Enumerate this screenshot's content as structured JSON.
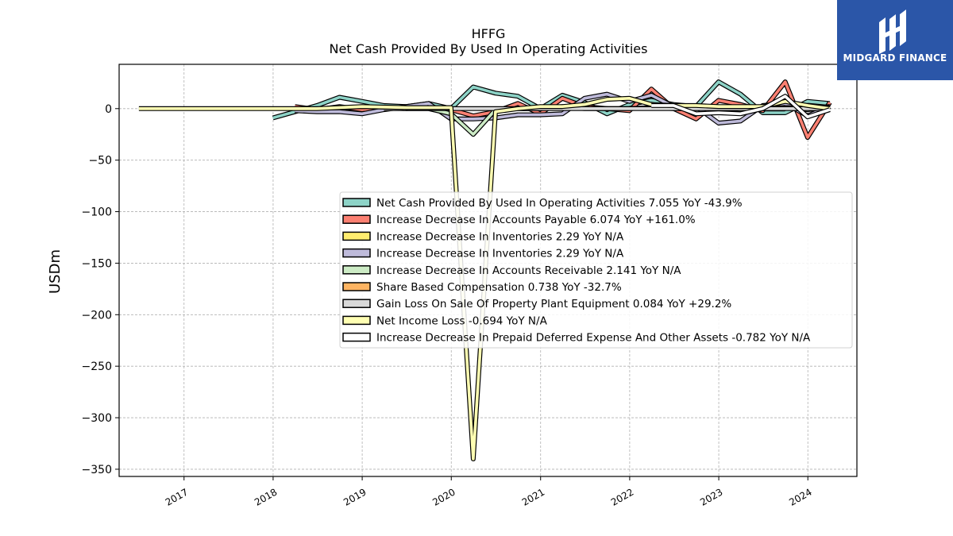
{
  "brand": {
    "name": "MIDGARD FINANCE"
  },
  "chart_data": {
    "type": "line",
    "title": "HFFG",
    "subtitle": "Net Cash Provided By Used In Operating Activities",
    "ylabel": "USDm",
    "xlabel": "",
    "ylim": [
      -357,
      43
    ],
    "xlim": [
      "2016-04-10",
      "2024-07-20"
    ],
    "y_ticks": [
      0,
      -50,
      -100,
      -150,
      -200,
      -250,
      -300,
      -350
    ],
    "y_tick_labels": [
      "0",
      "−50",
      "−100",
      "−150",
      "−200",
      "−250",
      "−300",
      "−350"
    ],
    "x_ticks": [
      "2017-01-01",
      "2018-01-01",
      "2019-01-01",
      "2020-01-01",
      "2021-01-01",
      "2022-01-01",
      "2023-01-01",
      "2024-01-01"
    ],
    "x_tick_labels": [
      "2017",
      "2018",
      "2019",
      "2020",
      "2021",
      "2022",
      "2023",
      "2024"
    ],
    "grid": true,
    "legend_position": "center-right",
    "series": [
      {
        "name": "Net Cash Provided By Used In Operating Activities",
        "legend": "Net Cash Provided By Used In Operating Activities  7.055 YoY -43.9%",
        "color": "#8dd3c7",
        "points": [
          [
            "2017-12-31",
            -9
          ],
          [
            "2018-03-31",
            -3
          ],
          [
            "2018-06-30",
            3
          ],
          [
            "2018-09-30",
            11
          ],
          [
            "2018-12-31",
            7
          ],
          [
            "2019-03-31",
            3
          ],
          [
            "2019-06-30",
            2
          ],
          [
            "2019-09-30",
            5
          ],
          [
            "2019-12-31",
            0
          ],
          [
            "2020-03-31",
            21
          ],
          [
            "2020-06-30",
            15
          ],
          [
            "2020-09-30",
            12
          ],
          [
            "2020-12-31",
            0
          ],
          [
            "2021-03-31",
            13
          ],
          [
            "2021-06-30",
            6
          ],
          [
            "2021-09-30",
            -5
          ],
          [
            "2021-12-31",
            4
          ],
          [
            "2022-03-31",
            8
          ],
          [
            "2022-06-30",
            4
          ],
          [
            "2022-09-30",
            2
          ],
          [
            "2022-12-31",
            26
          ],
          [
            "2023-03-31",
            14
          ],
          [
            "2023-06-30",
            -4
          ],
          [
            "2023-09-30",
            -4
          ],
          [
            "2023-12-31",
            7
          ],
          [
            "2024-03-31",
            5
          ]
        ]
      },
      {
        "name": "Increase Decrease In Accounts Payable",
        "legend": "Increase Decrease In Accounts Payable  6.074 YoY +161.0%",
        "color": "#fb8072",
        "points": [
          [
            "2018-03-31",
            2
          ],
          [
            "2018-06-30",
            -1
          ],
          [
            "2018-09-30",
            2
          ],
          [
            "2018-12-31",
            -1
          ],
          [
            "2019-03-31",
            1
          ],
          [
            "2019-06-30",
            0
          ],
          [
            "2019-09-30",
            2
          ],
          [
            "2019-12-31",
            -1
          ],
          [
            "2020-03-31",
            -7
          ],
          [
            "2020-06-30",
            -3
          ],
          [
            "2020-09-30",
            5
          ],
          [
            "2020-12-31",
            -5
          ],
          [
            "2021-03-31",
            10
          ],
          [
            "2021-06-30",
            2
          ],
          [
            "2021-09-30",
            0
          ],
          [
            "2021-12-31",
            -2
          ],
          [
            "2022-03-31",
            19
          ],
          [
            "2022-06-30",
            0
          ],
          [
            "2022-09-30",
            -10
          ],
          [
            "2022-12-31",
            8
          ],
          [
            "2023-03-31",
            4
          ],
          [
            "2023-06-30",
            -2
          ],
          [
            "2023-09-30",
            26
          ],
          [
            "2023-12-31",
            -28
          ],
          [
            "2024-03-31",
            6
          ]
        ]
      },
      {
        "name": "Increase Decrease In Inventories",
        "legend": "Increase Decrease In Inventories  2.29 YoY N/A",
        "color": "#ffed6f",
        "points": [
          [
            "2023-12-31",
            1
          ],
          [
            "2024-03-31",
            2
          ]
        ]
      },
      {
        "name": "Increase Decrease In Inventories",
        "legend": "Increase Decrease In Inventories  2.29 YoY N/A",
        "color": "#bebada",
        "points": [
          [
            "2018-03-31",
            -2
          ],
          [
            "2018-06-30",
            -3
          ],
          [
            "2018-09-30",
            -3
          ],
          [
            "2018-12-31",
            -5
          ],
          [
            "2019-03-31",
            -1
          ],
          [
            "2019-06-30",
            2
          ],
          [
            "2019-09-30",
            5
          ],
          [
            "2019-12-31",
            -10
          ],
          [
            "2020-03-31",
            -10
          ],
          [
            "2020-06-30",
            -9
          ],
          [
            "2020-09-30",
            -6
          ],
          [
            "2020-12-31",
            -6
          ],
          [
            "2021-03-31",
            -5
          ],
          [
            "2021-06-30",
            10
          ],
          [
            "2021-09-30",
            14
          ],
          [
            "2021-12-31",
            7
          ],
          [
            "2022-03-31",
            13
          ],
          [
            "2022-06-30",
            2
          ],
          [
            "2022-09-30",
            2
          ],
          [
            "2022-12-31",
            -14
          ],
          [
            "2023-03-31",
            -12
          ],
          [
            "2023-06-30",
            3
          ],
          [
            "2023-09-30",
            5
          ],
          [
            "2023-12-31",
            -7
          ],
          [
            "2024-03-31",
            2
          ]
        ]
      },
      {
        "name": "Increase Decrease In Accounts Receivable",
        "legend": "Increase Decrease In Accounts Receivable  2.141 YoY N/A",
        "color": "#ccebc5",
        "points": [
          [
            "2019-06-30",
            0
          ],
          [
            "2019-09-30",
            0
          ],
          [
            "2019-12-31",
            -5
          ],
          [
            "2020-03-31",
            -25
          ],
          [
            "2020-06-30",
            -1
          ],
          [
            "2020-09-30",
            0
          ],
          [
            "2020-12-31",
            0
          ],
          [
            "2021-03-31",
            2
          ],
          [
            "2021-06-30",
            0
          ],
          [
            "2021-09-30",
            0
          ],
          [
            "2021-12-31",
            0
          ],
          [
            "2022-03-31",
            1
          ],
          [
            "2022-06-30",
            0
          ],
          [
            "2022-09-30",
            0
          ],
          [
            "2022-12-31",
            1
          ],
          [
            "2023-03-31",
            -1
          ],
          [
            "2023-06-30",
            0
          ],
          [
            "2023-09-30",
            1
          ],
          [
            "2023-12-31",
            -1
          ],
          [
            "2024-03-31",
            2
          ]
        ]
      },
      {
        "name": "Share Based Compensation",
        "legend": "Share Based Compensation  0.738 YoY -32.7%",
        "color": "#fdb462",
        "points": [
          [
            "2022-03-31",
            1
          ],
          [
            "2022-06-30",
            1
          ],
          [
            "2022-09-30",
            1
          ],
          [
            "2022-12-31",
            1
          ],
          [
            "2023-03-31",
            1
          ],
          [
            "2023-06-30",
            1
          ],
          [
            "2023-09-30",
            1
          ],
          [
            "2023-12-31",
            1
          ],
          [
            "2024-03-31",
            1
          ]
        ]
      },
      {
        "name": "Gain Loss On Sale Of Property Plant Equipment",
        "legend": "Gain Loss On Sale Of Property Plant Equipment  0.084 YoY +29.2%",
        "color": "#d9d9d9",
        "points": [
          [
            "2019-03-31",
            0
          ],
          [
            "2019-12-31",
            0
          ],
          [
            "2020-12-31",
            0
          ],
          [
            "2021-12-31",
            0
          ],
          [
            "2022-12-31",
            0
          ],
          [
            "2023-12-31",
            0
          ],
          [
            "2024-03-31",
            0
          ]
        ]
      },
      {
        "name": "Net Income Loss",
        "legend": "Net Income Loss  -0.694 YoY N/A",
        "color": "#ffffb3",
        "points": [
          [
            "2016-06-30",
            0
          ],
          [
            "2017-06-30",
            0
          ],
          [
            "2017-12-31",
            0
          ],
          [
            "2018-06-30",
            0
          ],
          [
            "2018-12-31",
            2
          ],
          [
            "2019-06-30",
            1
          ],
          [
            "2019-12-31",
            1
          ],
          [
            "2020-03-31",
            -340
          ],
          [
            "2020-06-30",
            -3
          ],
          [
            "2020-09-30",
            0
          ],
          [
            "2020-12-31",
            2
          ],
          [
            "2021-03-31",
            2
          ],
          [
            "2021-06-30",
            4
          ],
          [
            "2021-09-30",
            9
          ],
          [
            "2021-12-31",
            10
          ],
          [
            "2022-03-31",
            4
          ],
          [
            "2022-06-30",
            3
          ],
          [
            "2022-09-30",
            3
          ],
          [
            "2022-12-31",
            2
          ],
          [
            "2023-03-31",
            2
          ],
          [
            "2023-06-30",
            2
          ],
          [
            "2023-09-30",
            7
          ],
          [
            "2023-12-31",
            3
          ],
          [
            "2024-03-31",
            0
          ]
        ]
      },
      {
        "name": "Increase Decrease In Prepaid Deferred Expense And Other Assets",
        "legend": "Increase Decrease In Prepaid Deferred Expense And Other Assets  -0.782 YoY N/A",
        "color": "#ffffff",
        "points": [
          [
            "2022-03-31",
            3
          ],
          [
            "2022-06-30",
            3
          ],
          [
            "2022-09-30",
            -5
          ],
          [
            "2022-12-31",
            -4
          ],
          [
            "2023-03-31",
            -5
          ],
          [
            "2023-06-30",
            0
          ],
          [
            "2023-09-30",
            12
          ],
          [
            "2023-12-31",
            -8
          ],
          [
            "2024-03-31",
            -1
          ]
        ]
      }
    ]
  }
}
